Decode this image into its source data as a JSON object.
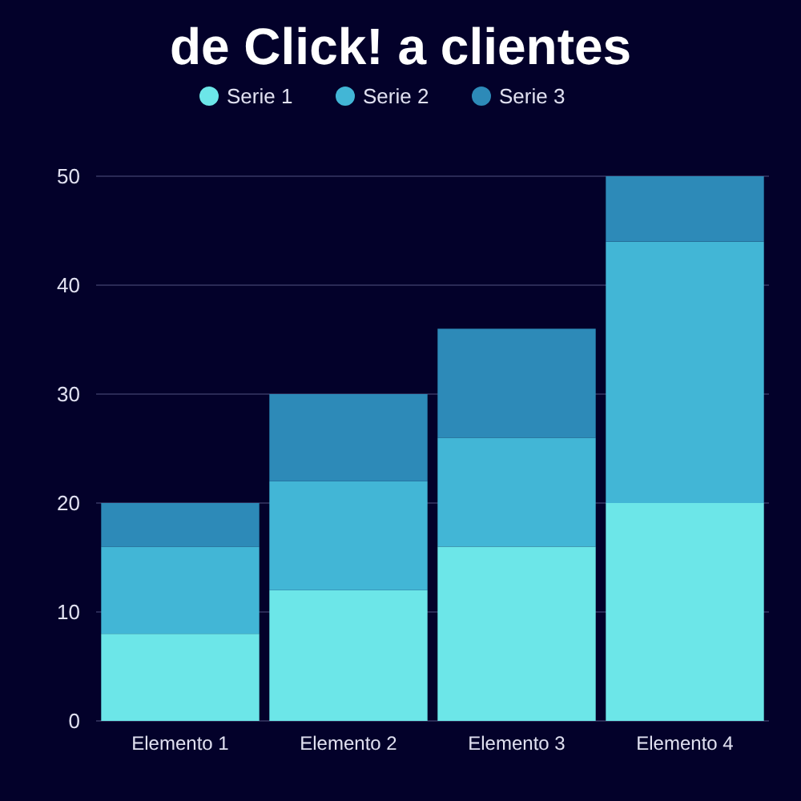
{
  "chart_data": {
    "type": "bar",
    "title": "de Click! a clientes",
    "categories": [
      "Elemento 1",
      "Elemento 2",
      "Elemento 3",
      "Elemento 4"
    ],
    "stacked": true,
    "series": [
      {
        "name": "Serie 1",
        "color": "#6ce6e8",
        "values": [
          8,
          12,
          16,
          20
        ]
      },
      {
        "name": "Serie 2",
        "color": "#42b6d6",
        "values": [
          8,
          10,
          10,
          24
        ]
      },
      {
        "name": "Serie 3",
        "color": "#2d8ab8",
        "values": [
          4,
          8,
          10,
          6
        ]
      }
    ],
    "ylim": [
      0,
      50
    ],
    "yticks": [
      0,
      10,
      20,
      30,
      40,
      50
    ],
    "grid": "y",
    "legend": "top"
  }
}
